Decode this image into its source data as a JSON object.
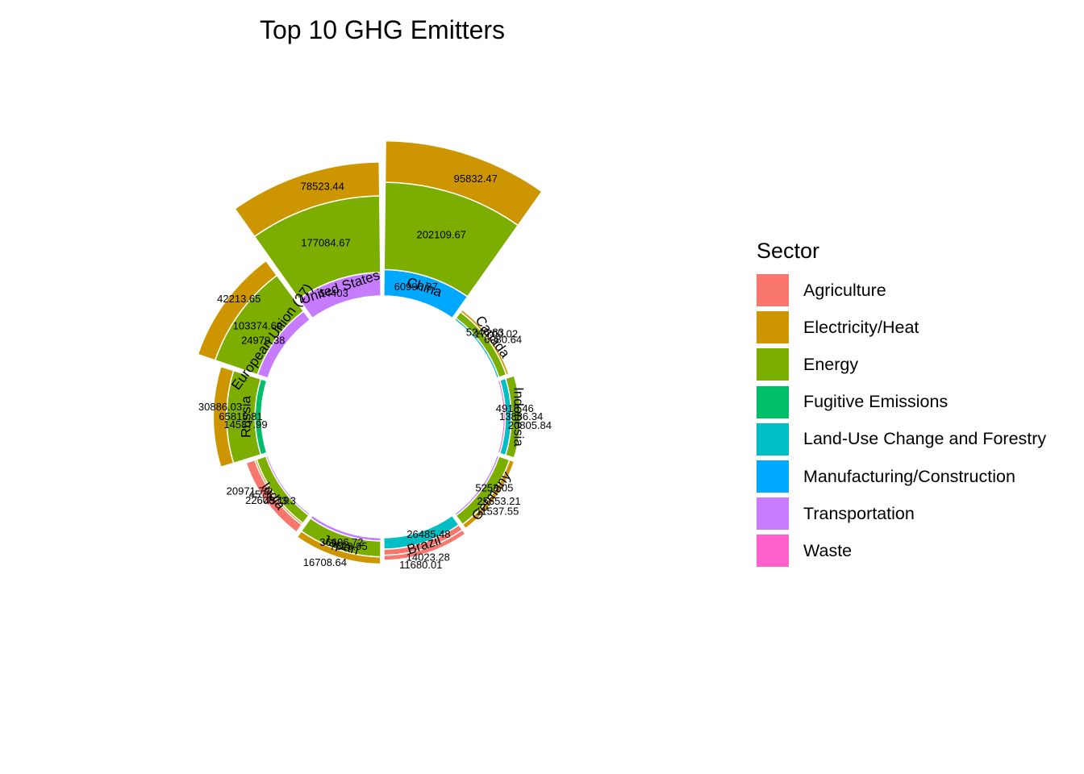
{
  "chart_data": {
    "type": "bar",
    "coord": "polar",
    "title": "Top 10 GHG Emitters",
    "legend": {
      "title": "Sector",
      "placement": "right",
      "items": [
        {
          "name": "Agriculture",
          "color": "#F8766D"
        },
        {
          "name": "Electricity/Heat",
          "color": "#CD9600"
        },
        {
          "name": "Energy",
          "color": "#7CAE00"
        },
        {
          "name": "Fugitive Emissions",
          "color": "#00BE67"
        },
        {
          "name": "Land-Use Change and Forestry",
          "color": "#00BFC4"
        },
        {
          "name": "Manufacturing/Construction",
          "color": "#00A9FF"
        },
        {
          "name": "Transportation",
          "color": "#C77CFF"
        },
        {
          "name": "Waste",
          "color": "#FF61CC"
        }
      ]
    },
    "categories": [
      "China",
      "Canada",
      "Indonesia",
      "Germany",
      "Brazil",
      "Japan",
      "India",
      "Russia",
      "European Union (27)",
      "United States"
    ],
    "stacks": [
      {
        "country": "China",
        "segments": [
          {
            "sector": "Manufacturing/Construction",
            "value": 60996.87
          },
          {
            "sector": "Energy",
            "value": 202109.67
          },
          {
            "sector": "Electricity/Heat",
            "value": 95832.47
          }
        ]
      },
      {
        "country": "Canada",
        "segments": [
          {
            "sector": "Land-Use Change and Forestry",
            "value": 5246.83
          },
          {
            "sector": "Energy",
            "value": 17700.02
          },
          {
            "sector": "Electricity/Heat",
            "value": 6080.64
          }
        ]
      },
      {
        "country": "Indonesia",
        "segments": [
          {
            "sector": "Waste",
            "value": 4918.46
          },
          {
            "sector": "Land-Use Change and Forestry",
            "value": 13886.34
          },
          {
            "sector": "Energy",
            "value": 20805.84
          }
        ]
      },
      {
        "country": "Germany",
        "segments": [
          {
            "sector": "Transportation",
            "value": 5253.05
          },
          {
            "sector": "Energy",
            "value": 25653.21
          },
          {
            "sector": "Electricity/Heat",
            "value": 11537.55
          }
        ]
      },
      {
        "country": "Brazil",
        "segments": [
          {
            "sector": "Land-Use Change and Forestry",
            "value": 26485.48
          },
          {
            "sector": "Agriculture",
            "value": 14023.28
          },
          {
            "sector": "Agriculture",
            "value": 11680.01
          }
        ]
      },
      {
        "country": "Japan",
        "segments": [
          {
            "sector": "Transportation",
            "value": 7629.95
          },
          {
            "sector": "Energy",
            "value": 36606.72
          },
          {
            "sector": "Electricity/Heat",
            "value": 16708.64
          }
        ]
      },
      {
        "country": "India",
        "segments": [
          {
            "sector": "Transportation",
            "value": 4573.3
          },
          {
            "sector": "Energy",
            "value": 22606.19
          },
          {
            "sector": "Electricity/Heat",
            "value": 4578
          },
          {
            "sector": "Agriculture",
            "value": 20971.72
          }
        ]
      },
      {
        "country": "Russia",
        "segments": [
          {
            "sector": "Fugitive Emissions",
            "value": 14587.99
          },
          {
            "sector": "Energy",
            "value": 65815.81
          },
          {
            "sector": "Electricity/Heat",
            "value": 30886.03
          }
        ]
      },
      {
        "country": "European Union (27)",
        "segments": [
          {
            "sector": "Transportation",
            "value": 24979.38
          },
          {
            "sector": "Energy",
            "value": 103374.69
          },
          {
            "sector": "Electricity/Heat",
            "value": 42213.65
          }
        ]
      },
      {
        "country": "United States",
        "segments": [
          {
            "sector": "Transportation",
            "value": 54403
          },
          {
            "sector": "Energy",
            "value": 177084.67
          },
          {
            "sector": "Electricity/Heat",
            "value": 78523.44
          }
        ]
      }
    ],
    "value_labels": [
      "95832.47",
      "202109.67",
      "60996.87",
      "6080.64",
      "17700.02",
      "5246.83",
      "20805.84",
      "13886.34",
      "4918.46",
      "25653.21",
      "5253.05",
      "11537.55",
      "26485.48",
      "14023.28",
      "11680.01",
      "7629.95",
      "36606.72",
      "16708.64",
      "4573.3",
      "22606.19",
      "20971.72",
      "4578",
      "14587.99",
      "65815.81",
      "30886.03",
      "24979.38",
      "103374.69",
      "42213.65",
      "54403",
      "177084.67",
      "78523.44"
    ],
    "grid": false
  }
}
